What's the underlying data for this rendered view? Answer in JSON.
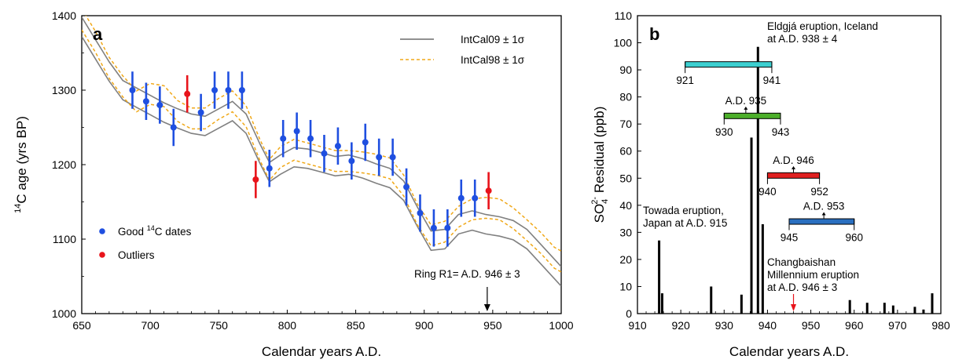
{
  "chart_data": [
    {
      "type": "scatter",
      "panel_label": "a",
      "xlabel": "Calendar years A.D.",
      "ylabel_parts": {
        "sup": "14",
        "rest": "C age (yrs BP)"
      },
      "xlim": [
        650,
        1000
      ],
      "ylim": [
        1000,
        1400
      ],
      "xticks": [
        650,
        700,
        750,
        800,
        850,
        900,
        950,
        1000
      ],
      "yticks": [
        1000,
        1100,
        1200,
        1300,
        1400
      ],
      "colors": {
        "good": "#1f4fe0",
        "outlier": "#e8141b",
        "intcal09": "#808080",
        "intcal98": "#f0a818"
      },
      "legend": {
        "intcal09": "IntCal09 ± 1σ",
        "intcal98": "IntCal98 ± 1σ"
      },
      "point_legend": {
        "good_pre": "Good ",
        "good_sup": "14",
        "good_post": "C dates",
        "outlier": "Outliers"
      },
      "ring_annotation": "Ring R1= A.D. 946 ± 3",
      "ring_year": 946,
      "series": [
        {
          "name": "Good 14C dates",
          "points": [
            {
              "x": 687,
              "y": 1300,
              "err": 25
            },
            {
              "x": 697,
              "y": 1285,
              "err": 25
            },
            {
              "x": 707,
              "y": 1280,
              "err": 25
            },
            {
              "x": 717,
              "y": 1250,
              "err": 25
            },
            {
              "x": 737,
              "y": 1270,
              "err": 25
            },
            {
              "x": 747,
              "y": 1300,
              "err": 25
            },
            {
              "x": 757,
              "y": 1300,
              "err": 25
            },
            {
              "x": 767,
              "y": 1300,
              "err": 25
            },
            {
              "x": 787,
              "y": 1195,
              "err": 25
            },
            {
              "x": 797,
              "y": 1235,
              "err": 25
            },
            {
              "x": 807,
              "y": 1245,
              "err": 25
            },
            {
              "x": 817,
              "y": 1235,
              "err": 25
            },
            {
              "x": 827,
              "y": 1215,
              "err": 25
            },
            {
              "x": 837,
              "y": 1225,
              "err": 25
            },
            {
              "x": 847,
              "y": 1205,
              "err": 25
            },
            {
              "x": 857,
              "y": 1230,
              "err": 25
            },
            {
              "x": 867,
              "y": 1210,
              "err": 25
            },
            {
              "x": 877,
              "y": 1210,
              "err": 25
            },
            {
              "x": 887,
              "y": 1170,
              "err": 25
            },
            {
              "x": 897,
              "y": 1135,
              "err": 25
            },
            {
              "x": 907,
              "y": 1115,
              "err": 25
            },
            {
              "x": 917,
              "y": 1115,
              "err": 25
            },
            {
              "x": 927,
              "y": 1155,
              "err": 25
            },
            {
              "x": 937,
              "y": 1155,
              "err": 25
            }
          ]
        },
        {
          "name": "Outliers",
          "points": [
            {
              "x": 727,
              "y": 1295,
              "err": 25
            },
            {
              "x": 777,
              "y": 1180,
              "err": 25
            },
            {
              "x": 947,
              "y": 1165,
              "err": 25
            }
          ]
        }
      ],
      "intcal09_mid": [
        [
          650,
          1385
        ],
        [
          660,
          1355
        ],
        [
          670,
          1325
        ],
        [
          680,
          1300
        ],
        [
          690,
          1290
        ],
        [
          700,
          1280
        ],
        [
          710,
          1270
        ],
        [
          720,
          1262
        ],
        [
          730,
          1255
        ],
        [
          740,
          1252
        ],
        [
          750,
          1262
        ],
        [
          760,
          1272
        ],
        [
          770,
          1255
        ],
        [
          780,
          1215
        ],
        [
          787,
          1190
        ],
        [
          795,
          1200
        ],
        [
          805,
          1210
        ],
        [
          815,
          1208
        ],
        [
          825,
          1203
        ],
        [
          835,
          1198
        ],
        [
          845,
          1200
        ],
        [
          855,
          1195
        ],
        [
          865,
          1188
        ],
        [
          875,
          1182
        ],
        [
          885,
          1165
        ],
        [
          895,
          1130
        ],
        [
          905,
          1098
        ],
        [
          915,
          1100
        ],
        [
          925,
          1120
        ],
        [
          935,
          1125
        ],
        [
          945,
          1120
        ],
        [
          955,
          1117
        ],
        [
          965,
          1112
        ],
        [
          975,
          1100
        ],
        [
          985,
          1080
        ],
        [
          995,
          1060
        ],
        [
          1000,
          1050
        ]
      ],
      "intcal09_halfwidth": 13,
      "intcal98_mid": [
        [
          650,
          1395
        ],
        [
          660,
          1365
        ],
        [
          670,
          1330
        ],
        [
          680,
          1305
        ],
        [
          690,
          1285
        ],
        [
          700,
          1295
        ],
        [
          710,
          1292
        ],
        [
          720,
          1272
        ],
        [
          730,
          1262
        ],
        [
          740,
          1262
        ],
        [
          750,
          1275
        ],
        [
          760,
          1285
        ],
        [
          770,
          1265
        ],
        [
          780,
          1220
        ],
        [
          787,
          1193
        ],
        [
          795,
          1210
        ],
        [
          805,
          1220
        ],
        [
          815,
          1215
        ],
        [
          825,
          1210
        ],
        [
          835,
          1205
        ],
        [
          845,
          1205
        ],
        [
          855,
          1203
        ],
        [
          865,
          1200
        ],
        [
          875,
          1195
        ],
        [
          885,
          1172
        ],
        [
          895,
          1133
        ],
        [
          905,
          1105
        ],
        [
          915,
          1110
        ],
        [
          925,
          1130
        ],
        [
          935,
          1140
        ],
        [
          945,
          1142
        ],
        [
          955,
          1140
        ],
        [
          965,
          1128
        ],
        [
          975,
          1112
        ],
        [
          985,
          1095
        ],
        [
          995,
          1075
        ],
        [
          1000,
          1070
        ]
      ],
      "intcal98_halfwidth": 14
    },
    {
      "type": "bar",
      "panel_label": "b",
      "xlabel": "Calendar years A.D.",
      "ylabel_parts": {
        "pre": "SO",
        "sub": "4",
        "sup": "2-",
        "rest": " Residual (ppb)"
      },
      "xlim": [
        910,
        980
      ],
      "ylim": [
        0,
        110
      ],
      "xticks": [
        910,
        920,
        930,
        940,
        950,
        960,
        970,
        980
      ],
      "yticks": [
        0,
        10,
        20,
        30,
        40,
        50,
        60,
        70,
        80,
        90,
        100,
        110
      ],
      "bars": [
        {
          "x": 915,
          "value": 27
        },
        {
          "x": 915.7,
          "value": 7.5
        },
        {
          "x": 927,
          "value": 10
        },
        {
          "x": 934,
          "value": 7
        },
        {
          "x": 936.3,
          "value": 65
        },
        {
          "x": 937.8,
          "value": 98.5
        },
        {
          "x": 938.9,
          "value": 33
        },
        {
          "x": 959,
          "value": 5
        },
        {
          "x": 963,
          "value": 4
        },
        {
          "x": 967,
          "value": 4
        },
        {
          "x": 969,
          "value": 3
        },
        {
          "x": 974,
          "value": 2.5
        },
        {
          "x": 976,
          "value": 1.5
        },
        {
          "x": 978,
          "value": 7.5
        }
      ],
      "ranges": [
        {
          "from": 921,
          "to": 941,
          "y": 92,
          "color": "#3ccfd0",
          "from_label": "921",
          "to_label": "941",
          "center_label": ""
        },
        {
          "from": 930,
          "to": 943,
          "y": 73,
          "color": "#4caf2a",
          "from_label": "930",
          "to_label": "943",
          "center_label": "A.D. 935",
          "center_x": 935
        },
        {
          "from": 940,
          "to": 952,
          "y": 51,
          "color": "#e02020",
          "from_label": "940",
          "to_label": "952",
          "center_label": "A.D. 946",
          "center_x": 946
        },
        {
          "from": 945,
          "to": 960,
          "y": 34,
          "color": "#2a6fc0",
          "from_label": "945",
          "to_label": "960",
          "center_label": "A.D. 953",
          "center_x": 953
        }
      ],
      "annotations": {
        "eldgja_line1": "Eldgjá eruption, Iceland",
        "eldgja_line2": "at A.D. 938 ± 4",
        "towada_line1": "Towada eruption,",
        "towada_line2": "Japan at A.D. 915",
        "changbai_line1": "Changbaishan",
        "changbai_line2": "Millennium eruption",
        "changbai_line3": "at A.D. 946 ± 3"
      },
      "changbai_year": 946,
      "arrow_color": "#e8141b"
    }
  ]
}
